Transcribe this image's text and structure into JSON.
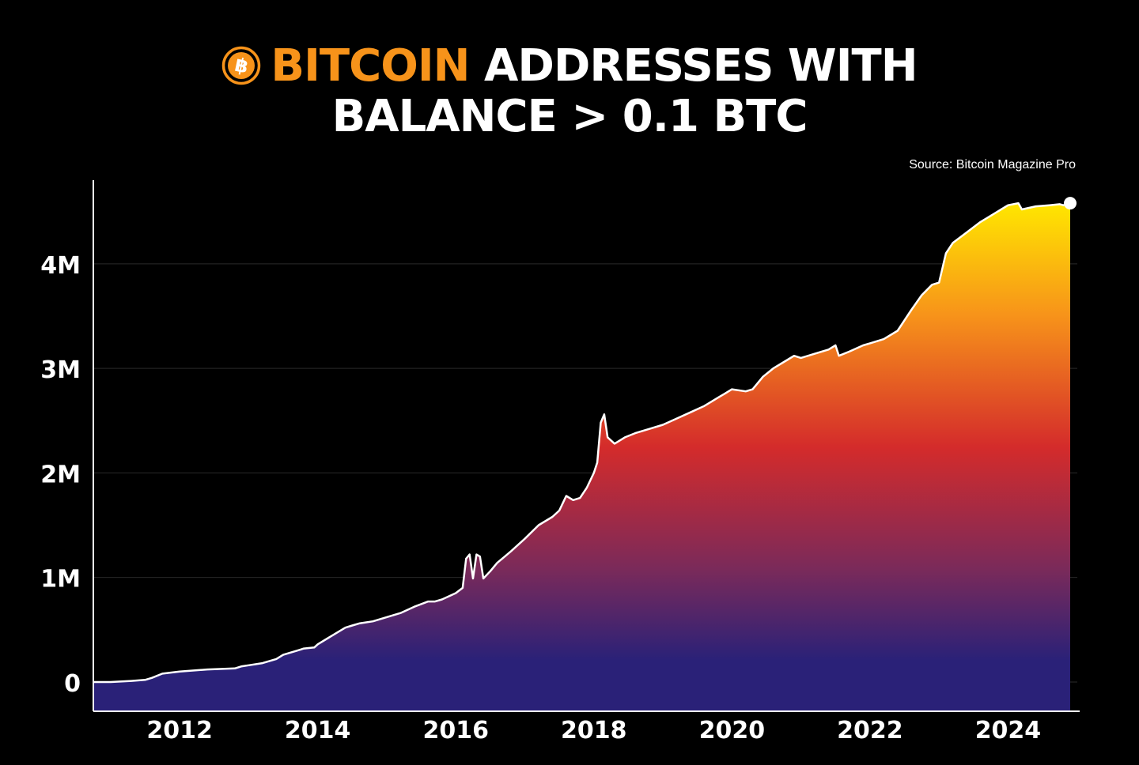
{
  "title": {
    "highlight": "BITCOIN",
    "line1_rest": "ADDRESSES WITH",
    "line2": "BALANCE > 0.1 BTC"
  },
  "source": "Source: Bitcoin Magazine Pro",
  "colors": {
    "background": "#000000",
    "brand_orange": "#f7931a",
    "line": "#ffffff",
    "gradient_top": "#ffe600",
    "gradient_upper": "#f7931a",
    "gradient_mid": "#d42b2b",
    "gradient_lower": "#7a2a5a",
    "gradient_bottom": "#2a2178"
  },
  "icons": {
    "logo": "bitcoin-logo-icon"
  },
  "chart_data": {
    "type": "area",
    "title": "BITCOIN ADDRESSES WITH BALANCE > 0.1 BTC",
    "xlabel": "",
    "ylabel": "",
    "xlim": [
      2010.75,
      2024.9
    ],
    "ylim": [
      -280000,
      4800000
    ],
    "grid": "horizontal",
    "x_ticks": [
      {
        "value": 2012,
        "label": "2012"
      },
      {
        "value": 2014,
        "label": "2014"
      },
      {
        "value": 2016,
        "label": "2016"
      },
      {
        "value": 2018,
        "label": "2018"
      },
      {
        "value": 2020,
        "label": "2020"
      },
      {
        "value": 2022,
        "label": "2022"
      },
      {
        "value": 2024,
        "label": "2024"
      }
    ],
    "y_ticks": [
      {
        "value": 0,
        "label": "0"
      },
      {
        "value": 1000000,
        "label": "1M"
      },
      {
        "value": 2000000,
        "label": "2M"
      },
      {
        "value": 3000000,
        "label": "3M"
      },
      {
        "value": 4000000,
        "label": "4M"
      }
    ],
    "series": [
      {
        "x": [
          2010.75,
          2011.0,
          2011.3,
          2011.5,
          2011.6,
          2011.75,
          2012.0,
          2012.4,
          2012.8,
          2012.9,
          2013.0,
          2013.2,
          2013.4,
          2013.5,
          2013.6,
          2013.7,
          2013.8,
          2013.95,
          2014.0,
          2014.1,
          2014.25,
          2014.4,
          2014.5,
          2014.6,
          2014.8,
          2015.0,
          2015.2,
          2015.4,
          2015.6,
          2015.7,
          2015.8,
          2015.9,
          2016.0,
          2016.1,
          2016.15,
          2016.2,
          2016.25,
          2016.3,
          2016.35,
          2016.4,
          2016.5,
          2016.6,
          2016.8,
          2017.0,
          2017.2,
          2017.4,
          2017.5,
          2017.6,
          2017.7,
          2017.8,
          2017.9,
          2018.0,
          2018.05,
          2018.1,
          2018.15,
          2018.2,
          2018.3,
          2018.45,
          2018.6,
          2018.8,
          2019.0,
          2019.2,
          2019.4,
          2019.6,
          2019.8,
          2019.9,
          2020.0,
          2020.2,
          2020.3,
          2020.45,
          2020.6,
          2020.8,
          2020.9,
          2021.0,
          2021.2,
          2021.4,
          2021.5,
          2021.55,
          2021.7,
          2021.9,
          2022.0,
          2022.2,
          2022.4,
          2022.5,
          2022.6,
          2022.75,
          2022.9,
          2023.0,
          2023.1,
          2023.2,
          2023.4,
          2023.6,
          2023.8,
          2024.0,
          2024.15,
          2024.2,
          2024.4,
          2024.6,
          2024.75,
          2024.8,
          2024.9
        ],
        "y": [
          0,
          0,
          10000,
          20000,
          40000,
          80000,
          100000,
          120000,
          130000,
          150000,
          160000,
          180000,
          220000,
          260000,
          280000,
          300000,
          320000,
          330000,
          360000,
          400000,
          460000,
          520000,
          540000,
          560000,
          580000,
          620000,
          660000,
          720000,
          770000,
          770000,
          790000,
          820000,
          850000,
          900000,
          1180000,
          1220000,
          990000,
          1220000,
          1200000,
          990000,
          1060000,
          1140000,
          1250000,
          1370000,
          1500000,
          1580000,
          1640000,
          1780000,
          1740000,
          1760000,
          1860000,
          2000000,
          2100000,
          2480000,
          2560000,
          2340000,
          2280000,
          2340000,
          2380000,
          2420000,
          2460000,
          2520000,
          2580000,
          2640000,
          2720000,
          2760000,
          2800000,
          2780000,
          2800000,
          2920000,
          3000000,
          3080000,
          3120000,
          3100000,
          3140000,
          3180000,
          3220000,
          3120000,
          3160000,
          3220000,
          3240000,
          3280000,
          3360000,
          3460000,
          3560000,
          3700000,
          3800000,
          3820000,
          4100000,
          4200000,
          4300000,
          4400000,
          4480000,
          4560000,
          4580000,
          4520000,
          4550000,
          4560000,
          4570000,
          4560000,
          4580000
        ]
      }
    ],
    "end_marker": {
      "x": 2024.9,
      "y": 4580000
    }
  }
}
